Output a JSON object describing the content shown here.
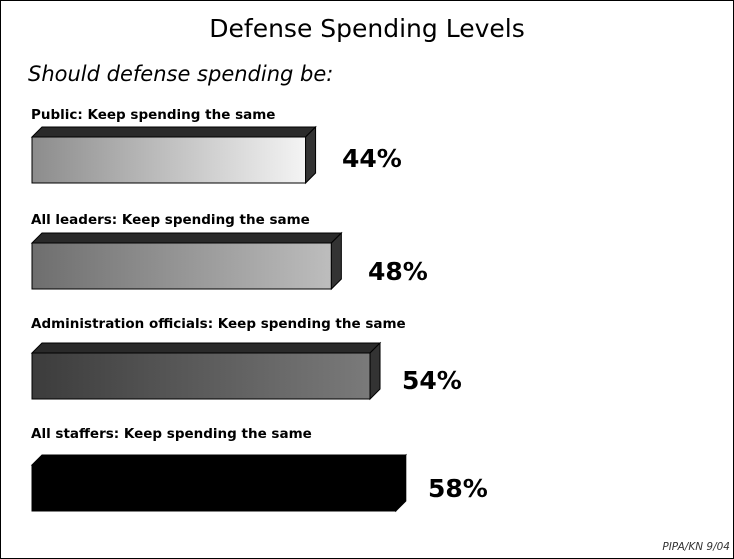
{
  "chart_data": {
    "type": "bar",
    "title": "Defense Spending Levels",
    "subtitle": "Should defense spending be:",
    "categories": [
      "Public:  Keep spending the same",
      "All leaders: Keep spending the same",
      "Administration officials: Keep spending the same",
      "All staffers: Keep spending the same"
    ],
    "values": [
      44,
      48,
      54,
      58
    ],
    "value_labels": [
      "44%",
      "48%",
      "54%",
      "58%"
    ],
    "unit": "%",
    "bar_colors": [
      [
        "#8c8c8c",
        "#f4f4f4"
      ],
      [
        "#6e6e6e",
        "#bdbdbd"
      ],
      [
        "#3c3c3c",
        "#7a7a7a"
      ],
      [
        "#000000",
        "#000000"
      ]
    ],
    "source": "PIPA/KN 9/04"
  }
}
